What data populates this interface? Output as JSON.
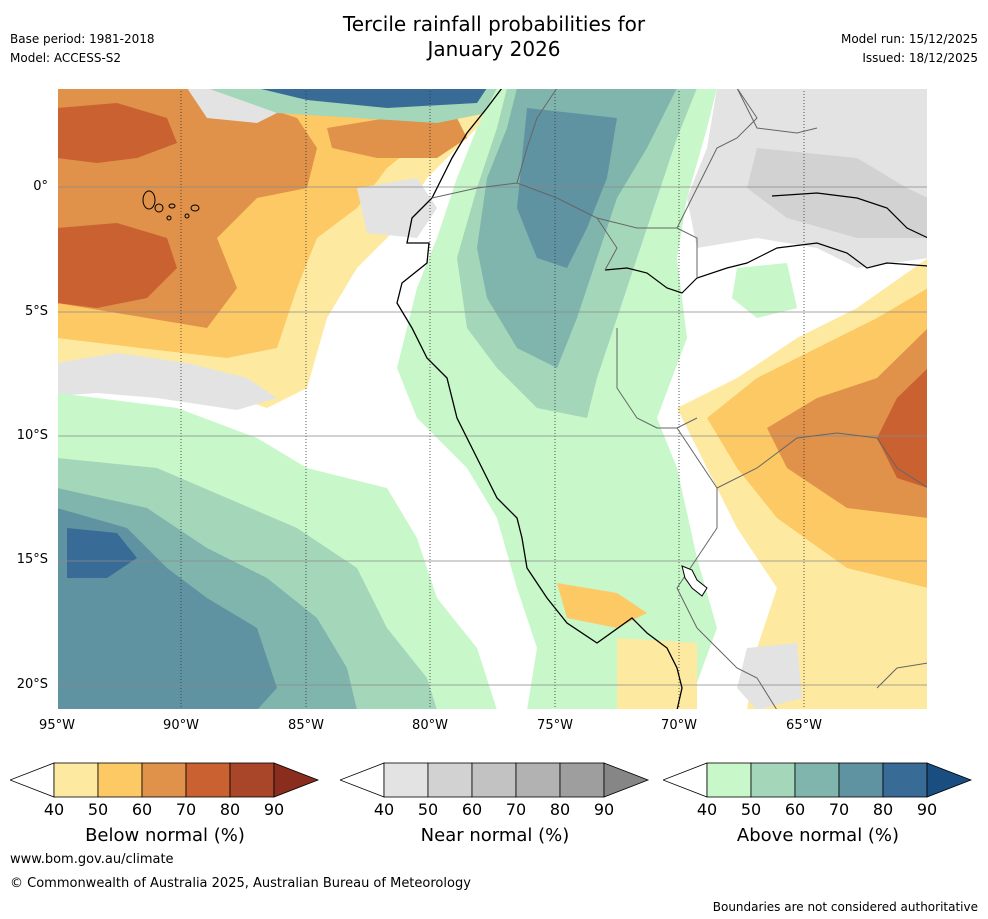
{
  "header": {
    "title_line1": "Tercile rainfall probabilities for",
    "title_line2": "January 2026",
    "base_period": "Base period: 1981-2018",
    "model": "Model: ACCESS-S2",
    "model_run": "Model run: 15/12/2025",
    "issued": "Issued: 18/12/2025"
  },
  "map": {
    "lat_labels": [
      "0°",
      "5°S",
      "10°S",
      "15°S",
      "20°S"
    ],
    "lon_labels": [
      "95°W",
      "90°W",
      "85°W",
      "80°W",
      "75°W",
      "70°W",
      "65°W"
    ]
  },
  "colorbars": [
    {
      "label": "Below normal (%)",
      "ticks": [
        "40",
        "50",
        "60",
        "70",
        "80",
        "90"
      ],
      "colors": [
        "#fdeaa0",
        "#fdc964",
        "#e0914a",
        "#c96230",
        "#a9462a",
        "#8a2d1f"
      ]
    },
    {
      "label": "Near normal (%)",
      "ticks": [
        "40",
        "50",
        "60",
        "70",
        "80",
        "90"
      ],
      "colors": [
        "#e3e3e3",
        "#d2d2d2",
        "#c2c2c2",
        "#b2b2b2",
        "#9e9e9e",
        "#868686"
      ]
    },
    {
      "label": "Above normal (%)",
      "ticks": [
        "40",
        "50",
        "60",
        "70",
        "80",
        "90"
      ],
      "colors": [
        "#c8f7c9",
        "#a4d6b9",
        "#80b5ad",
        "#5f93a2",
        "#386c96",
        "#1a4d80"
      ]
    }
  ],
  "footer": {
    "website": "www.bom.gov.au/climate",
    "copyright": "© Commonwealth of Australia 2025, Australian Bureau of Meteorology",
    "disclaimer": "Boundaries are not considered authoritative"
  }
}
